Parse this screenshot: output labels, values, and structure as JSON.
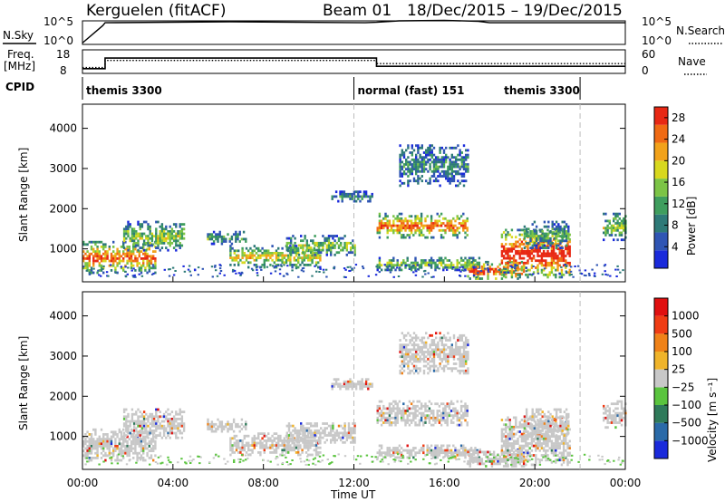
{
  "header": {
    "station": "Kerguelen (fitACF)",
    "beam": "Beam 01",
    "dates": "18/Dec/2015 – 19/Dec/2015"
  },
  "chart_data": [
    {
      "type": "line",
      "panel": "noise",
      "left_labels": [
        "N.Sky",
        "10^5",
        "10^0"
      ],
      "right_labels": [
        "10^5",
        "10^0",
        "N.Search"
      ],
      "series": [
        {
          "name": "N.Sky",
          "x": [
            0,
            0.9,
            1,
            6.5,
            12.5,
            13,
            14,
            16,
            17.5,
            18,
            22,
            24
          ],
          "y": [
            0.3,
            4.0,
            4.6,
            4.8,
            4.6,
            4.7,
            5.0,
            5.1,
            4.9,
            4.6,
            4.6,
            4.6
          ]
        }
      ],
      "ylim": [
        0,
        5
      ]
    },
    {
      "type": "line",
      "panel": "frequency",
      "left_labels": [
        "Freq.",
        "[MHz]",
        "18",
        "8"
      ],
      "right_labels": [
        "60",
        "0",
        "Nave"
      ],
      "series": [
        {
          "name": "Freq.",
          "x": [
            0,
            1,
            1,
            13,
            13,
            24
          ],
          "y": [
            10,
            10,
            14.5,
            14.5,
            11,
            11
          ]
        },
        {
          "name": "Nave",
          "x": [
            0,
            1,
            1,
            13,
            13,
            24
          ],
          "y": [
            15,
            15,
            33,
            33,
            25,
            25
          ]
        }
      ],
      "ylim_freq": [
        8,
        18
      ],
      "ylim_nave": [
        0,
        60
      ]
    },
    {
      "type": "table",
      "panel": "cpid",
      "label": "CPID",
      "segments": [
        {
          "label": "themis 3300",
          "start": 0,
          "end": 12
        },
        {
          "label": "normal (fast) 151",
          "start": 12,
          "end": 22
        },
        {
          "label": "themis 3300",
          "start": 22,
          "end": 24
        }
      ]
    },
    {
      "type": "heatmap",
      "panel": "power",
      "ylabel": "Slant Range [km]",
      "yticks": [
        "1000",
        "2000",
        "3000",
        "4000"
      ],
      "ylim": [
        180,
        4600
      ],
      "xlim": [
        0,
        24
      ],
      "colorbar": {
        "label": "Power [dB]",
        "ticks": [
          "4",
          "8",
          "12",
          "16",
          "20",
          "24",
          "28"
        ],
        "range": [
          0,
          30
        ],
        "colors": [
          "#1a2adb",
          "#2f55b4",
          "#2e7a78",
          "#3f9e5e",
          "#7cc446",
          "#d8d81e",
          "#f2a21a",
          "#f06a14",
          "#e82814"
        ]
      },
      "echo_regions": [
        {
          "t0": 0.0,
          "t1": 3.2,
          "r0": 420,
          "r1": 1200,
          "level": 0.8
        },
        {
          "t0": 1.8,
          "t1": 4.5,
          "r0": 950,
          "r1": 1700,
          "level": 0.5
        },
        {
          "t0": 5.5,
          "t1": 7.2,
          "r0": 1150,
          "r1": 1450,
          "level": 0.4
        },
        {
          "t0": 6.5,
          "t1": 10.5,
          "r0": 550,
          "r1": 1100,
          "level": 0.6
        },
        {
          "t0": 9.0,
          "t1": 12.0,
          "r0": 850,
          "r1": 1350,
          "level": 0.5
        },
        {
          "t0": 11.0,
          "t1": 12.8,
          "r0": 2200,
          "r1": 2450,
          "level": 0.3
        },
        {
          "t0": 13.0,
          "t1": 17.0,
          "r0": 1300,
          "r1": 1900,
          "level": 0.8
        },
        {
          "t0": 13.0,
          "t1": 17.5,
          "r0": 500,
          "r1": 800,
          "level": 0.5
        },
        {
          "t0": 14.0,
          "t1": 17.0,
          "r0": 2600,
          "r1": 3600,
          "level": 0.3
        },
        {
          "t0": 17.0,
          "t1": 19.5,
          "r0": 250,
          "r1": 700,
          "level": 0.9
        },
        {
          "t0": 18.5,
          "t1": 21.5,
          "r0": 300,
          "r1": 1500,
          "level": 1.0
        },
        {
          "t0": 19.5,
          "t1": 21.5,
          "r0": 1000,
          "r1": 1700,
          "level": 0.4
        },
        {
          "t0": 23.0,
          "t1": 24.0,
          "r0": 1200,
          "r1": 1900,
          "level": 0.5
        }
      ]
    },
    {
      "type": "heatmap",
      "panel": "velocity",
      "ylabel": "Slant Range [km]",
      "yticks": [
        "1000",
        "2000",
        "3000",
        "4000"
      ],
      "ylim": [
        180,
        4600
      ],
      "xlim": [
        0,
        24
      ],
      "xlabel": "Time UT",
      "xticks": [
        "00:00",
        "04:00",
        "08:00",
        "12:00",
        "16:00",
        "20:00",
        "00:00"
      ],
      "colorbar": {
        "label": "Velocity [m s⁻¹]",
        "ticks": [
          "1000",
          "500",
          "100",
          "25",
          "−25",
          "−100",
          "−500",
          "−1000"
        ],
        "colors": [
          "#1a2adb",
          "#2a6aa8",
          "#2f7a5a",
          "#5ac43e",
          "#c8c8c8",
          "#f0b42a",
          "#f08218",
          "#f03c14",
          "#e01010"
        ]
      }
    }
  ]
}
